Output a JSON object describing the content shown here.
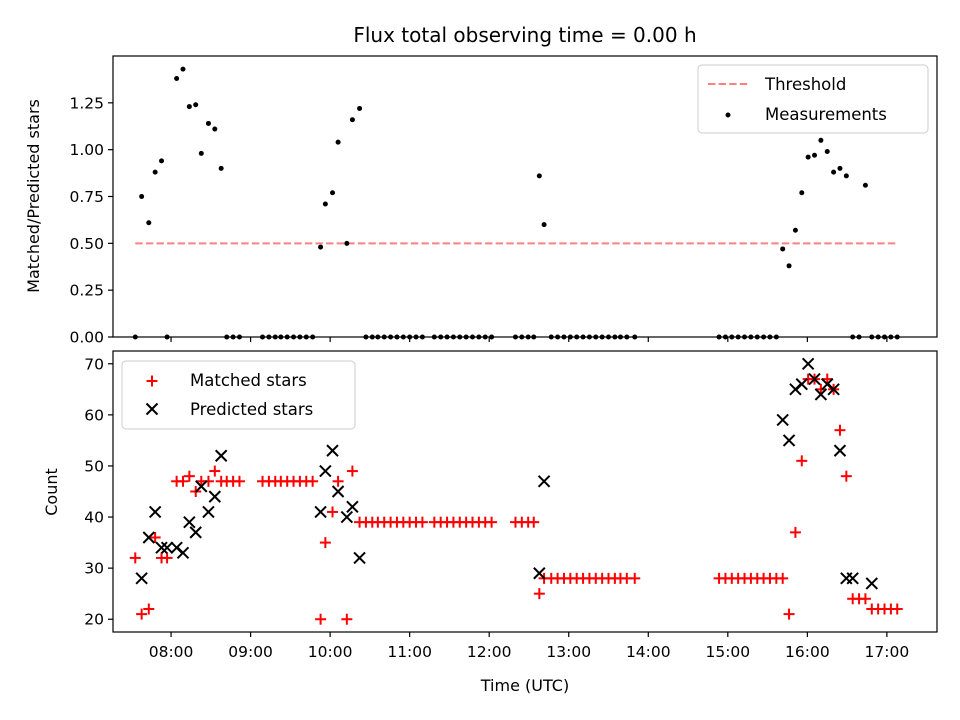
{
  "chart_data": [
    {
      "type": "scatter",
      "title": "Flux total observing time = 0.00 h",
      "ylabel": "Matched/Predicted stars",
      "xlabel": "",
      "xlim": [
        7.27,
        17.63
      ],
      "ylim": [
        0,
        1.5
      ],
      "yticks": [
        0.0,
        0.25,
        0.5,
        0.75,
        1.0,
        1.25
      ],
      "ytick_labels": [
        "0.00",
        "0.25",
        "0.50",
        "0.75",
        "1.00",
        "1.25"
      ],
      "xticks": [
        8,
        9,
        10,
        11,
        12,
        13,
        14,
        15,
        16,
        17
      ],
      "grid": false,
      "legend": {
        "placement": "top-right",
        "entries": [
          "Threshold",
          "Measurements"
        ]
      },
      "series": [
        {
          "name": "Threshold",
          "kind": "dashed-line",
          "color": "#ff8080",
          "x": [
            7.55,
            17.13
          ],
          "y": [
            0.5,
            0.5
          ]
        },
        {
          "name": "Measurements",
          "kind": "points",
          "color": "#000000",
          "x": [
            7.55,
            7.63,
            7.72,
            7.8,
            7.88,
            7.95,
            8.07,
            8.15,
            8.23,
            8.31,
            8.38,
            8.47,
            8.55,
            8.63,
            8.7,
            8.78,
            8.86,
            9.15,
            9.23,
            9.31,
            9.38,
            9.46,
            9.54,
            9.62,
            9.7,
            9.78,
            9.88,
            9.94,
            10.03,
            10.1,
            10.21,
            10.28,
            10.37,
            10.45,
            10.53,
            10.6,
            10.68,
            10.76,
            10.84,
            10.92,
            11.0,
            11.08,
            11.16,
            11.31,
            11.39,
            11.47,
            11.55,
            11.63,
            11.71,
            11.79,
            11.87,
            11.95,
            12.03,
            12.33,
            12.41,
            12.49,
            12.56,
            12.63,
            12.69,
            12.78,
            12.86,
            12.94,
            13.02,
            13.1,
            13.18,
            13.26,
            13.34,
            13.42,
            13.5,
            13.58,
            13.65,
            13.73,
            13.83,
            14.89,
            14.97,
            15.05,
            15.13,
            15.21,
            15.29,
            15.37,
            15.45,
            15.53,
            15.61,
            15.69,
            15.77,
            15.85,
            15.93,
            16.01,
            16.09,
            16.17,
            16.25,
            16.33,
            16.41,
            16.49,
            16.57,
            16.65,
            16.73,
            16.81,
            16.89,
            16.97,
            17.05,
            17.13
          ],
          "y": [
            0.0,
            0.75,
            0.61,
            0.88,
            0.94,
            0.0,
            1.38,
            1.43,
            1.23,
            1.24,
            0.98,
            1.14,
            1.11,
            0.9,
            0.0,
            0.0,
            0.0,
            0.0,
            0.0,
            0.0,
            0.0,
            0.0,
            0.0,
            0.0,
            0.0,
            0.0,
            0.48,
            0.71,
            0.77,
            1.04,
            0.5,
            1.16,
            1.22,
            0.0,
            0.0,
            0.0,
            0.0,
            0.0,
            0.0,
            0.0,
            0.0,
            0.0,
            0.0,
            0.0,
            0.0,
            0.0,
            0.0,
            0.0,
            0.0,
            0.0,
            0.0,
            0.0,
            0.0,
            0.0,
            0.0,
            0.0,
            0.0,
            0.86,
            0.6,
            0.0,
            0.0,
            0.0,
            0.0,
            0.0,
            0.0,
            0.0,
            0.0,
            0.0,
            0.0,
            0.0,
            0.0,
            0.0,
            0.0,
            0.0,
            0.0,
            0.0,
            0.0,
            0.0,
            0.0,
            0.0,
            0.0,
            0.0,
            0.0,
            0.47,
            0.38,
            0.57,
            0.77,
            0.96,
            0.97,
            1.05,
            0.99,
            0.88,
            0.9,
            0.86,
            0.0,
            0.0,
            0.81,
            0.0,
            0.0,
            0.0,
            0.0,
            0.0
          ]
        }
      ]
    },
    {
      "type": "scatter",
      "title": "",
      "xlabel": "Time (UTC)",
      "ylabel": "Count",
      "xlim": [
        7.27,
        17.63
      ],
      "ylim": [
        17.5,
        72.5
      ],
      "yticks": [
        20,
        30,
        40,
        50,
        60,
        70
      ],
      "xticks": [
        8,
        9,
        10,
        11,
        12,
        13,
        14,
        15,
        16,
        17
      ],
      "xtick_labels": [
        "08:00",
        "09:00",
        "10:00",
        "11:00",
        "12:00",
        "13:00",
        "14:00",
        "15:00",
        "16:00",
        "17:00"
      ],
      "grid": false,
      "legend": {
        "placement": "top-left",
        "entries": [
          "Matched stars",
          "Predicted stars"
        ]
      },
      "series": [
        {
          "name": "Matched stars",
          "marker": "plus",
          "color": "#ff0000",
          "x": [
            7.55,
            7.63,
            7.72,
            7.8,
            7.88,
            7.95,
            8.07,
            8.15,
            8.23,
            8.31,
            8.38,
            8.47,
            8.55,
            8.63,
            8.7,
            8.78,
            8.86,
            9.15,
            9.23,
            9.31,
            9.38,
            9.46,
            9.54,
            9.62,
            9.7,
            9.78,
            9.88,
            9.94,
            10.03,
            10.1,
            10.21,
            10.28,
            10.37,
            10.45,
            10.53,
            10.6,
            10.68,
            10.76,
            10.84,
            10.92,
            11.0,
            11.08,
            11.16,
            11.31,
            11.39,
            11.47,
            11.55,
            11.63,
            11.71,
            11.79,
            11.87,
            11.95,
            12.03,
            12.33,
            12.41,
            12.49,
            12.56,
            12.63,
            12.69,
            12.78,
            12.86,
            12.94,
            13.02,
            13.1,
            13.18,
            13.26,
            13.34,
            13.42,
            13.5,
            13.58,
            13.65,
            13.73,
            13.83,
            14.89,
            14.97,
            15.05,
            15.13,
            15.21,
            15.29,
            15.37,
            15.45,
            15.53,
            15.61,
            15.69,
            15.77,
            15.85,
            15.93,
            16.01,
            16.09,
            16.17,
            16.25,
            16.33,
            16.41,
            16.49,
            16.57,
            16.65,
            16.73,
            16.81,
            16.89,
            16.97,
            17.05,
            17.13
          ],
          "y": [
            32,
            21,
            22,
            36,
            32,
            32,
            47,
            47,
            48,
            45,
            47,
            47,
            49,
            47,
            47,
            47,
            47,
            47,
            47,
            47,
            47,
            47,
            47,
            47,
            47,
            47,
            20,
            35,
            41,
            47,
            20,
            49,
            39,
            39,
            39,
            39,
            39,
            39,
            39,
            39,
            39,
            39,
            39,
            39,
            39,
            39,
            39,
            39,
            39,
            39,
            39,
            39,
            39,
            39,
            39,
            39,
            39,
            25,
            28,
            28,
            28,
            28,
            28,
            28,
            28,
            28,
            28,
            28,
            28,
            28,
            28,
            28,
            28,
            28,
            28,
            28,
            28,
            28,
            28,
            28,
            28,
            28,
            28,
            28,
            21,
            37,
            51,
            67,
            67,
            65,
            67,
            65,
            57,
            48,
            24,
            24,
            24,
            22,
            22,
            22,
            22,
            22
          ]
        },
        {
          "name": "Predicted stars",
          "marker": "x",
          "color": "#000000",
          "x": [
            7.63,
            7.72,
            7.8,
            7.88,
            7.95,
            8.07,
            8.15,
            8.23,
            8.31,
            8.38,
            8.47,
            8.55,
            8.63,
            9.88,
            9.94,
            10.03,
            10.1,
            10.21,
            10.28,
            10.37,
            12.63,
            12.69,
            15.69,
            15.77,
            15.85,
            15.93,
            16.01,
            16.09,
            16.17,
            16.25,
            16.33,
            16.41,
            16.49,
            16.57,
            16.81
          ],
          "y": [
            28,
            36,
            41,
            34,
            34,
            34,
            33,
            39,
            37,
            46,
            41,
            44,
            52,
            41,
            49,
            53,
            45,
            40,
            42,
            32,
            29,
            47,
            59,
            55,
            65,
            66,
            70,
            67,
            64,
            66,
            65,
            53,
            28,
            28,
            27
          ]
        }
      ]
    }
  ]
}
